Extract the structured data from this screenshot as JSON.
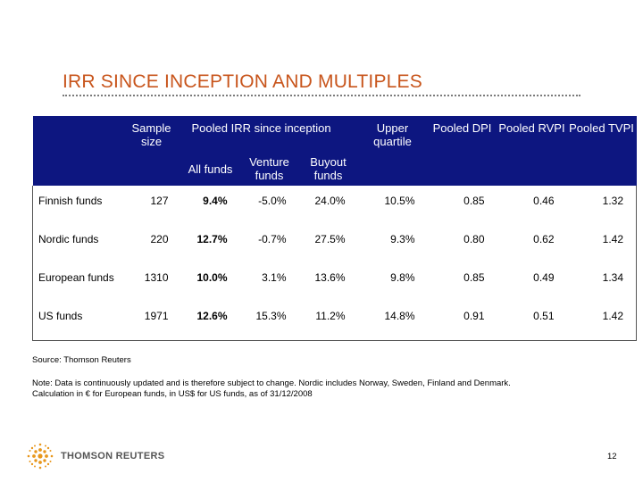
{
  "title": "IRR SINCE INCEPTION AND MULTIPLES",
  "table": {
    "headers": {
      "sample_size": "Sample size",
      "pooled_irr": "Pooled IRR since inception",
      "all_funds": "All funds",
      "venture_funds": "Venture funds",
      "buyout_funds": "Buyout funds",
      "upper_quartile": "Upper quartile",
      "pooled_dpi": "Pooled DPI",
      "pooled_rvpi": "Pooled RVPI",
      "pooled_tvpi": "Pooled TVPI"
    },
    "rows": [
      {
        "name": "Finnish funds",
        "sample": "127",
        "all": "9.4%",
        "venture": "-5.0%",
        "buyout": "24.0%",
        "upper": "10.5%",
        "dpi": "0.85",
        "rvpi": "0.46",
        "tvpi": "1.32"
      },
      {
        "name": "Nordic funds",
        "sample": "220",
        "all": "12.7%",
        "venture": "-0.7%",
        "buyout": "27.5%",
        "upper": "9.3%",
        "dpi": "0.80",
        "rvpi": "0.62",
        "tvpi": "1.42"
      },
      {
        "name": "European funds",
        "sample": "1310",
        "all": "10.0%",
        "venture": "3.1%",
        "buyout": "13.6%",
        "upper": "9.8%",
        "dpi": "0.85",
        "rvpi": "0.49",
        "tvpi": "1.34"
      },
      {
        "name": "US funds",
        "sample": "1971",
        "all": "12.6%",
        "venture": "15.3%",
        "buyout": "11.2%",
        "upper": "14.8%",
        "dpi": "0.91",
        "rvpi": "0.51",
        "tvpi": "1.42"
      }
    ]
  },
  "source": "Source: Thomson Reuters",
  "note_line1": "Note: Data is continuously updated and is therefore subject to change. Nordic includes Norway, Sweden, Finland and Denmark.",
  "note_line2": "Calculation in € for European funds, in US$ for US funds, as of 31/12/2008",
  "logo_text": "THOMSON REUTERS",
  "page_number": "12",
  "colors": {
    "title": "#c8551c",
    "header_bg": "#0d1680",
    "logo_orange": "#e8971c"
  }
}
